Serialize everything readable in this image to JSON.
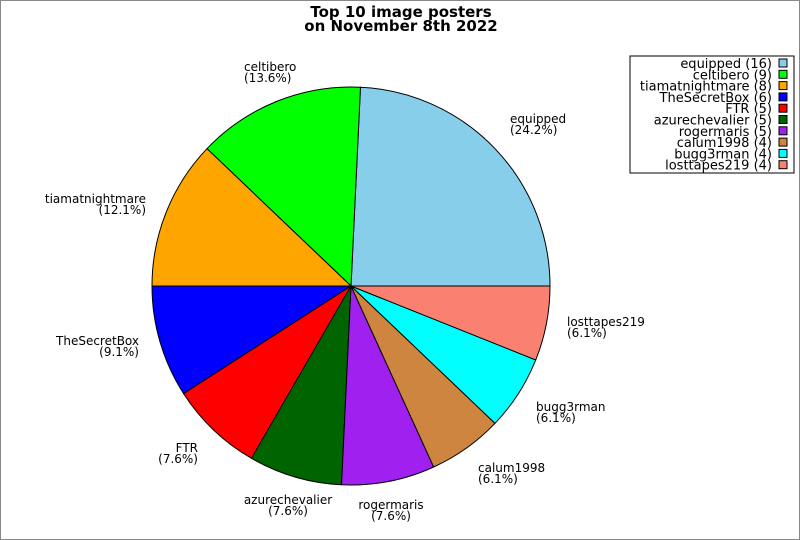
{
  "chart_data": {
    "type": "pie",
    "title": [
      "Top 10 image posters",
      "on November 8th 2022"
    ],
    "categories": [
      "equipped",
      "celtibero",
      "tiamatnightmare",
      "TheSecretBox",
      "FTR",
      "azurechevalier",
      "rogermaris",
      "calum1998",
      "bugg3rman",
      "losttapes219"
    ],
    "values": [
      16,
      9,
      8,
      6,
      5,
      5,
      5,
      4,
      4,
      4
    ],
    "percent_labels": [
      "(24.2%)",
      "(13.6%)",
      "(12.1%)",
      "(9.1%)",
      "(7.6%)",
      "(7.6%)",
      "(7.6%)",
      "(6.1%)",
      "(6.1%)",
      "(6.1%)"
    ],
    "legend_labels": [
      "equipped (16)",
      "celtibero (9)",
      "tiamatnightmare (8)",
      "TheSecretBox (6)",
      "FTR (5)",
      "azurechevalier (5)",
      "rogermaris (5)",
      "calum1998 (4)",
      "bugg3rman (4)",
      "losttapes219 (4)"
    ],
    "colors": [
      "#87ceeb",
      "#00ff00",
      "#ffa500",
      "#0000ff",
      "#ff0000",
      "#006400",
      "#a020f0",
      "#cd853f",
      "#00ffff",
      "#fa8072"
    ],
    "legend_position": "top-right",
    "start_angle_deg": 0,
    "direction": "counterclockwise"
  }
}
